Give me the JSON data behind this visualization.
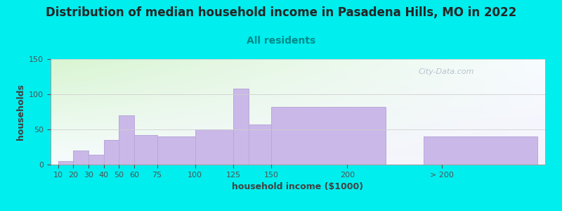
{
  "title": "Distribution of median household income in Pasadena Hills, MO in 2022",
  "subtitle": "All residents",
  "xlabel": "household income ($1000)",
  "ylabel": "households",
  "bar_color": "#c9b8e8",
  "bar_edge_color": "#b8a8d8",
  "background_color": "#00eeee",
  "ylim": [
    0,
    150
  ],
  "yticks": [
    0,
    50,
    100,
    150
  ],
  "title_fontsize": 12,
  "subtitle_fontsize": 10,
  "axis_label_fontsize": 9,
  "watermark_text": "City-Data.com",
  "bar_lefts": [
    10,
    20,
    30,
    40,
    50,
    60,
    75,
    100,
    125,
    135,
    150,
    250
  ],
  "bar_widths": [
    10,
    10,
    10,
    10,
    10,
    15,
    25,
    25,
    10,
    15,
    75,
    75
  ],
  "bar_heights": [
    5,
    20,
    14,
    35,
    70,
    42,
    40,
    50,
    108,
    57,
    82,
    40
  ],
  "xtick_positions": [
    10,
    20,
    30,
    40,
    50,
    60,
    75,
    100,
    125,
    150,
    200,
    262
  ],
  "xtick_labels": [
    "10",
    "20",
    "30",
    "40",
    "50",
    "60",
    "75",
    "100",
    "125",
    "150",
    "200",
    "> 200"
  ],
  "xlim": [
    5,
    330
  ]
}
